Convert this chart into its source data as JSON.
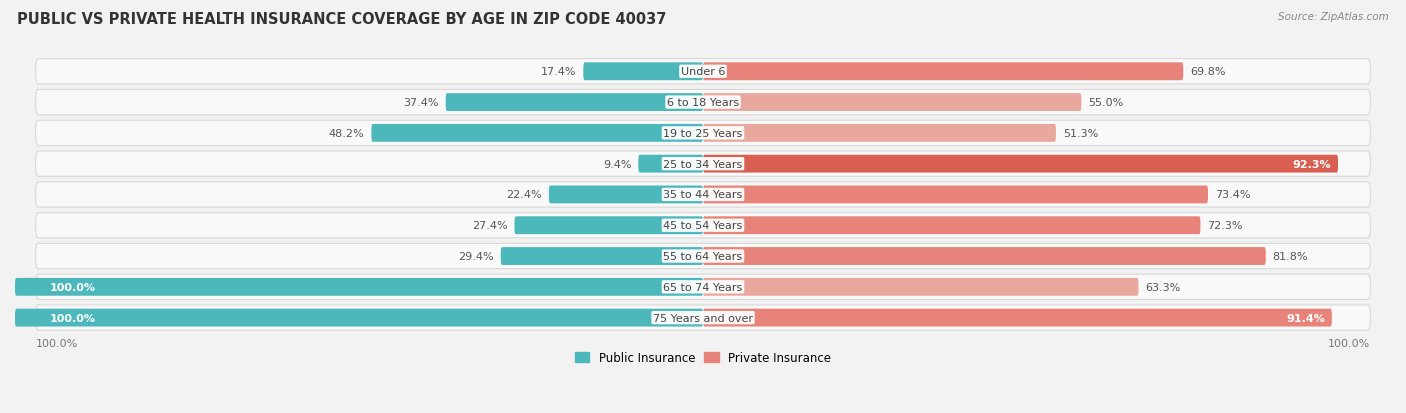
{
  "title": "PUBLIC VS PRIVATE HEALTH INSURANCE COVERAGE BY AGE IN ZIP CODE 40037",
  "source": "Source: ZipAtlas.com",
  "categories": [
    "Under 6",
    "6 to 18 Years",
    "19 to 25 Years",
    "25 to 34 Years",
    "35 to 44 Years",
    "45 to 54 Years",
    "55 to 64 Years",
    "65 to 74 Years",
    "75 Years and over"
  ],
  "public_values": [
    17.4,
    37.4,
    48.2,
    9.4,
    22.4,
    27.4,
    29.4,
    100.0,
    100.0
  ],
  "private_values": [
    69.8,
    55.0,
    51.3,
    92.3,
    73.4,
    72.3,
    81.8,
    63.3,
    91.4
  ],
  "public_color": "#4db8bc",
  "private_colors": [
    "#e8837a",
    "#e8a89e",
    "#e8a89e",
    "#d95f52",
    "#e8837a",
    "#e8837a",
    "#e8837a",
    "#e8a89e",
    "#e8837a"
  ],
  "bg_color": "#f2f2f2",
  "row_bg": "#f9f9f9",
  "row_border": "#d8d8d8",
  "bar_height": 0.58,
  "max_val": 100.0,
  "title_fontsize": 10.5,
  "label_fontsize": 8,
  "category_fontsize": 8,
  "legend_fontsize": 8.5,
  "source_fontsize": 7.5
}
